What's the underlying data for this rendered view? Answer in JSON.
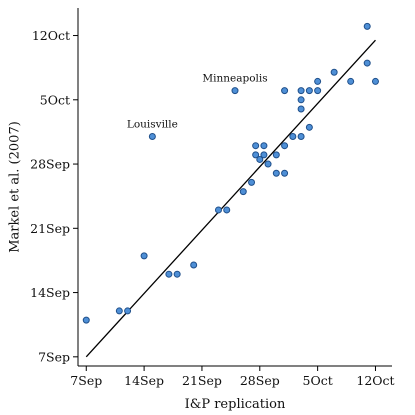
{
  "chart_data": {
    "type": "scatter",
    "xlabel": "I&P replication",
    "ylabel": "Markel et al. (2007)",
    "x_unit": "days after 7 Sep",
    "y_unit": "days after 7 Sep",
    "xlim": [
      -1,
      37
    ],
    "ylim": [
      -1,
      38
    ],
    "grid": false,
    "xticks": [
      {
        "value": 0,
        "label": "7Sep"
      },
      {
        "value": 7,
        "label": "14Sep"
      },
      {
        "value": 14,
        "label": "21Sep"
      },
      {
        "value": 21,
        "label": "28Sep"
      },
      {
        "value": 28,
        "label": "5Oct"
      },
      {
        "value": 35,
        "label": "12Oct"
      }
    ],
    "yticks": [
      {
        "value": 0,
        "label": "7Sep"
      },
      {
        "value": 7,
        "label": "14Sep"
      },
      {
        "value": 14,
        "label": "21Sep"
      },
      {
        "value": 21,
        "label": "28Sep"
      },
      {
        "value": 28,
        "label": "5Oct"
      },
      {
        "value": 35,
        "label": "12Oct"
      }
    ],
    "points": [
      {
        "x": 0.0,
        "y": 4.0
      },
      {
        "x": 4.0,
        "y": 5.0
      },
      {
        "x": 5.0,
        "y": 5.0
      },
      {
        "x": 7.0,
        "y": 11.0
      },
      {
        "x": 8.0,
        "y": 24.0,
        "label": "Louisville"
      },
      {
        "x": 10.0,
        "y": 9.0
      },
      {
        "x": 11.0,
        "y": 9.0
      },
      {
        "x": 13.0,
        "y": 10.0
      },
      {
        "x": 16.0,
        "y": 16.0
      },
      {
        "x": 17.0,
        "y": 16.0
      },
      {
        "x": 18.0,
        "y": 29.0,
        "label": "Minneapolis"
      },
      {
        "x": 19.0,
        "y": 18.0
      },
      {
        "x": 20.0,
        "y": 19.0
      },
      {
        "x": 20.5,
        "y": 22.0
      },
      {
        "x": 20.5,
        "y": 23.0
      },
      {
        "x": 21.0,
        "y": 21.5
      },
      {
        "x": 21.5,
        "y": 22.0
      },
      {
        "x": 21.5,
        "y": 23.0
      },
      {
        "x": 22.0,
        "y": 21.0
      },
      {
        "x": 23.0,
        "y": 20.0
      },
      {
        "x": 23.0,
        "y": 22.0
      },
      {
        "x": 24.0,
        "y": 20.0
      },
      {
        "x": 24.0,
        "y": 23.0
      },
      {
        "x": 25.0,
        "y": 24.0
      },
      {
        "x": 24.0,
        "y": 29.0
      },
      {
        "x": 26.0,
        "y": 24.0
      },
      {
        "x": 26.0,
        "y": 27.0
      },
      {
        "x": 26.0,
        "y": 28.0
      },
      {
        "x": 26.0,
        "y": 29.0
      },
      {
        "x": 27.0,
        "y": 25.0
      },
      {
        "x": 27.0,
        "y": 29.0
      },
      {
        "x": 28.0,
        "y": 29.0
      },
      {
        "x": 28.0,
        "y": 30.0
      },
      {
        "x": 30.0,
        "y": 31.0
      },
      {
        "x": 32.0,
        "y": 30.0
      },
      {
        "x": 34.0,
        "y": 32.0
      },
      {
        "x": 34.0,
        "y": 36.0
      },
      {
        "x": 35.0,
        "y": 30.0
      }
    ],
    "fit_line": {
      "x": [
        0,
        35
      ],
      "y": [
        0,
        34.5
      ]
    }
  }
}
